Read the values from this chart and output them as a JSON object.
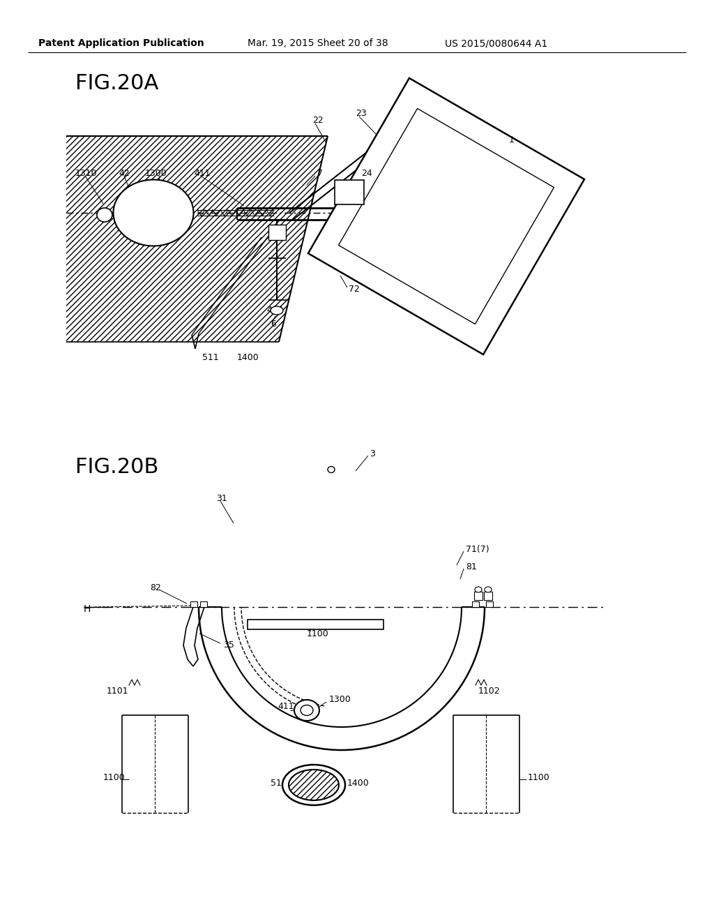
{
  "background_color": "#ffffff",
  "header_text": "Patent Application Publication",
  "header_date": "Mar. 19, 2015 Sheet 20 of 38",
  "header_patent": "US 2015/0080644 A1",
  "fig20a_label": "FIG.20A",
  "fig20b_label": "FIG.20B",
  "line_color": "#000000",
  "font_size_header": 10,
  "font_size_fig": 20,
  "font_size_label": 9
}
